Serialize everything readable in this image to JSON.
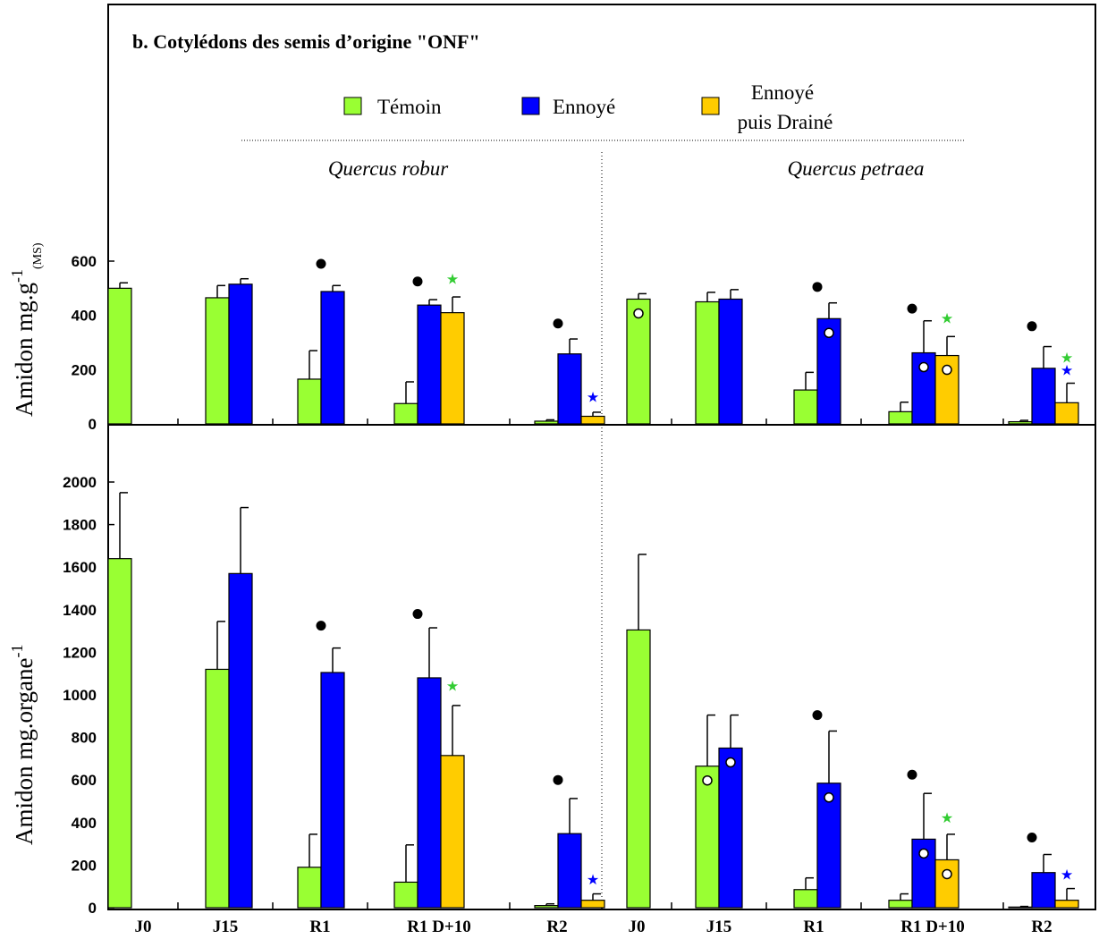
{
  "chart_data": {
    "type": "bar",
    "title": "b. Cotylédons des semis d’origine \"ONF\"",
    "legend": {
      "placement": "top",
      "entries": [
        {
          "label": "Témoin",
          "color": "#99ff33"
        },
        {
          "label": "Ennoyé",
          "color": "#0000ff"
        },
        {
          "label_line1": "Ennoyé",
          "label_line2": "puis Drainé",
          "color": "#ffcc00"
        }
      ]
    },
    "species": [
      "Quercus robur",
      "Quercus petraea"
    ],
    "categories": [
      "J0",
      "J15",
      "R1",
      "R1 D+10",
      "R2"
    ],
    "series_names": [
      "Témoin",
      "Ennoyé",
      "Ennoyé puis Drainé"
    ],
    "panels": [
      {
        "ylabel": "Amidon mg.g",
        "ylabel_sup": "-1",
        "ylabel_sub": "(MS)",
        "ylim": [
          0,
          600
        ],
        "yticks": [
          0,
          200,
          400,
          600
        ],
        "groups": [
          {
            "species": "Quercus robur",
            "category": "J0",
            "bars": [
              {
                "series": "Témoin",
                "value": 500,
                "err": 20
              }
            ]
          },
          {
            "species": "Quercus robur",
            "category": "J15",
            "bars": [
              {
                "series": "Témoin",
                "value": 465,
                "err": 45
              },
              {
                "series": "Ennoyé",
                "value": 515,
                "err": 20
              }
            ]
          },
          {
            "species": "Quercus robur",
            "category": "R1",
            "bars": [
              {
                "series": "Témoin",
                "value": 165,
                "err": 105
              },
              {
                "series": "Ennoyé",
                "value": 488,
                "err": 22
              }
            ],
            "marks": [
              {
                "type": "dot",
                "value": 590
              }
            ]
          },
          {
            "species": "Quercus robur",
            "category": "R1 D+10",
            "bars": [
              {
                "series": "Témoin",
                "value": 75,
                "err": 80
              },
              {
                "series": "Ennoyé",
                "value": 438,
                "err": 20
              },
              {
                "series": "Ennoyé puis Drainé",
                "value": 410,
                "err": 58
              }
            ],
            "marks": [
              {
                "type": "dot",
                "value": 525
              },
              {
                "type": "star-green",
                "value": 535
              }
            ]
          },
          {
            "species": "Quercus robur",
            "category": "R2",
            "bars": [
              {
                "series": "Témoin",
                "value": 10,
                "err": 5
              },
              {
                "series": "Ennoyé",
                "value": 258,
                "err": 55
              },
              {
                "series": "Ennoyé puis Drainé",
                "value": 28,
                "err": 15
              }
            ],
            "marks": [
              {
                "type": "dot",
                "value": 370
              },
              {
                "type": "star-blue",
                "value": 100
              }
            ]
          },
          {
            "species": "Quercus petraea",
            "category": "J0",
            "bars": [
              {
                "series": "Témoin",
                "value": 460,
                "err": 20,
                "circle": true
              }
            ]
          },
          {
            "species": "Quercus petraea",
            "category": "J15",
            "bars": [
              {
                "series": "Témoin",
                "value": 450,
                "err": 35
              },
              {
                "series": "Ennoyé",
                "value": 460,
                "err": 35
              }
            ]
          },
          {
            "species": "Quercus petraea",
            "category": "R1",
            "bars": [
              {
                "series": "Témoin",
                "value": 125,
                "err": 65
              },
              {
                "series": "Ennoyé",
                "value": 388,
                "err": 58,
                "circle": true
              }
            ],
            "marks": [
              {
                "type": "dot",
                "value": 505
              }
            ]
          },
          {
            "species": "Quercus petraea",
            "category": "R1 D+10",
            "bars": [
              {
                "series": "Témoin",
                "value": 45,
                "err": 35
              },
              {
                "series": "Ennoyé",
                "value": 262,
                "err": 118,
                "circle": true
              },
              {
                "series": "Ennoyé puis Drainé",
                "value": 252,
                "err": 70,
                "circle": true
              }
            ],
            "marks": [
              {
                "type": "dot",
                "value": 425
              },
              {
                "type": "star-green",
                "value": 390
              }
            ]
          },
          {
            "species": "Quercus petraea",
            "category": "R2",
            "bars": [
              {
                "series": "Témoin",
                "value": 8,
                "err": 5
              },
              {
                "series": "Ennoyé",
                "value": 205,
                "err": 80
              },
              {
                "series": "Ennoyé puis Drainé",
                "value": 78,
                "err": 72
              }
            ],
            "marks": [
              {
                "type": "dot",
                "value": 360
              },
              {
                "type": "star-green",
                "value": 245
              },
              {
                "type": "star-blue",
                "value": 200
              }
            ]
          }
        ]
      },
      {
        "ylabel": "Amidon mg.organe",
        "ylabel_sup": "-1",
        "ylim": [
          0,
          2000
        ],
        "yticks": [
          0,
          200,
          400,
          600,
          800,
          1000,
          1200,
          1400,
          1600,
          1800,
          2000
        ],
        "groups": [
          {
            "species": "Quercus robur",
            "category": "J0",
            "bars": [
              {
                "series": "Témoin",
                "value": 1640,
                "err": 310
              }
            ]
          },
          {
            "species": "Quercus robur",
            "category": "J15",
            "bars": [
              {
                "series": "Témoin",
                "value": 1120,
                "err": 225
              },
              {
                "series": "Ennoyé",
                "value": 1570,
                "err": 310
              }
            ]
          },
          {
            "species": "Quercus robur",
            "category": "R1",
            "bars": [
              {
                "series": "Témoin",
                "value": 190,
                "err": 155
              },
              {
                "series": "Ennoyé",
                "value": 1105,
                "err": 115
              }
            ],
            "marks": [
              {
                "type": "dot",
                "value": 1325
              }
            ]
          },
          {
            "species": "Quercus robur",
            "category": "R1 D+10",
            "bars": [
              {
                "series": "Témoin",
                "value": 120,
                "err": 175
              },
              {
                "series": "Ennoyé",
                "value": 1080,
                "err": 235
              },
              {
                "series": "Ennoyé puis Drainé",
                "value": 715,
                "err": 235
              }
            ],
            "marks": [
              {
                "type": "dot",
                "value": 1380
              },
              {
                "type": "star-green",
                "value": 1045
              }
            ]
          },
          {
            "species": "Quercus robur",
            "category": "R2",
            "bars": [
              {
                "series": "Témoin",
                "value": 10,
                "err": 8
              },
              {
                "series": "Ennoyé",
                "value": 348,
                "err": 165
              },
              {
                "series": "Ennoyé puis Drainé",
                "value": 35,
                "err": 30
              }
            ],
            "marks": [
              {
                "type": "dot",
                "value": 600
              },
              {
                "type": "star-blue",
                "value": 135
              }
            ]
          },
          {
            "species": "Quercus petraea",
            "category": "J0",
            "bars": [
              {
                "series": "Témoin",
                "value": 1305,
                "err": 355
              }
            ]
          },
          {
            "species": "Quercus petraea",
            "category": "J15",
            "bars": [
              {
                "series": "Témoin",
                "value": 665,
                "err": 240,
                "circle": true
              },
              {
                "series": "Ennoyé",
                "value": 750,
                "err": 155,
                "circle": true
              }
            ]
          },
          {
            "species": "Quercus petraea",
            "category": "R1",
            "bars": [
              {
                "series": "Témoin",
                "value": 85,
                "err": 55
              },
              {
                "series": "Ennoyé",
                "value": 585,
                "err": 245,
                "circle": true
              }
            ],
            "marks": [
              {
                "type": "dot",
                "value": 905
              }
            ]
          },
          {
            "species": "Quercus petraea",
            "category": "R1 D+10",
            "bars": [
              {
                "series": "Témoin",
                "value": 35,
                "err": 30
              },
              {
                "series": "Ennoyé",
                "value": 322,
                "err": 215,
                "circle": true
              },
              {
                "series": "Ennoyé puis Drainé",
                "value": 225,
                "err": 120,
                "circle": true
              }
            ],
            "marks": [
              {
                "type": "dot",
                "value": 625
              },
              {
                "type": "star-green",
                "value": 425
              }
            ]
          },
          {
            "species": "Quercus petraea",
            "category": "R2",
            "bars": [
              {
                "series": "Témoin",
                "value": 3,
                "err": 3
              },
              {
                "series": "Ennoyé",
                "value": 165,
                "err": 85
              },
              {
                "series": "Ennoyé puis Drainé",
                "value": 35,
                "err": 55
              }
            ],
            "marks": [
              {
                "type": "dot",
                "value": 330
              },
              {
                "type": "star-blue",
                "value": 158
              }
            ]
          }
        ]
      }
    ]
  }
}
